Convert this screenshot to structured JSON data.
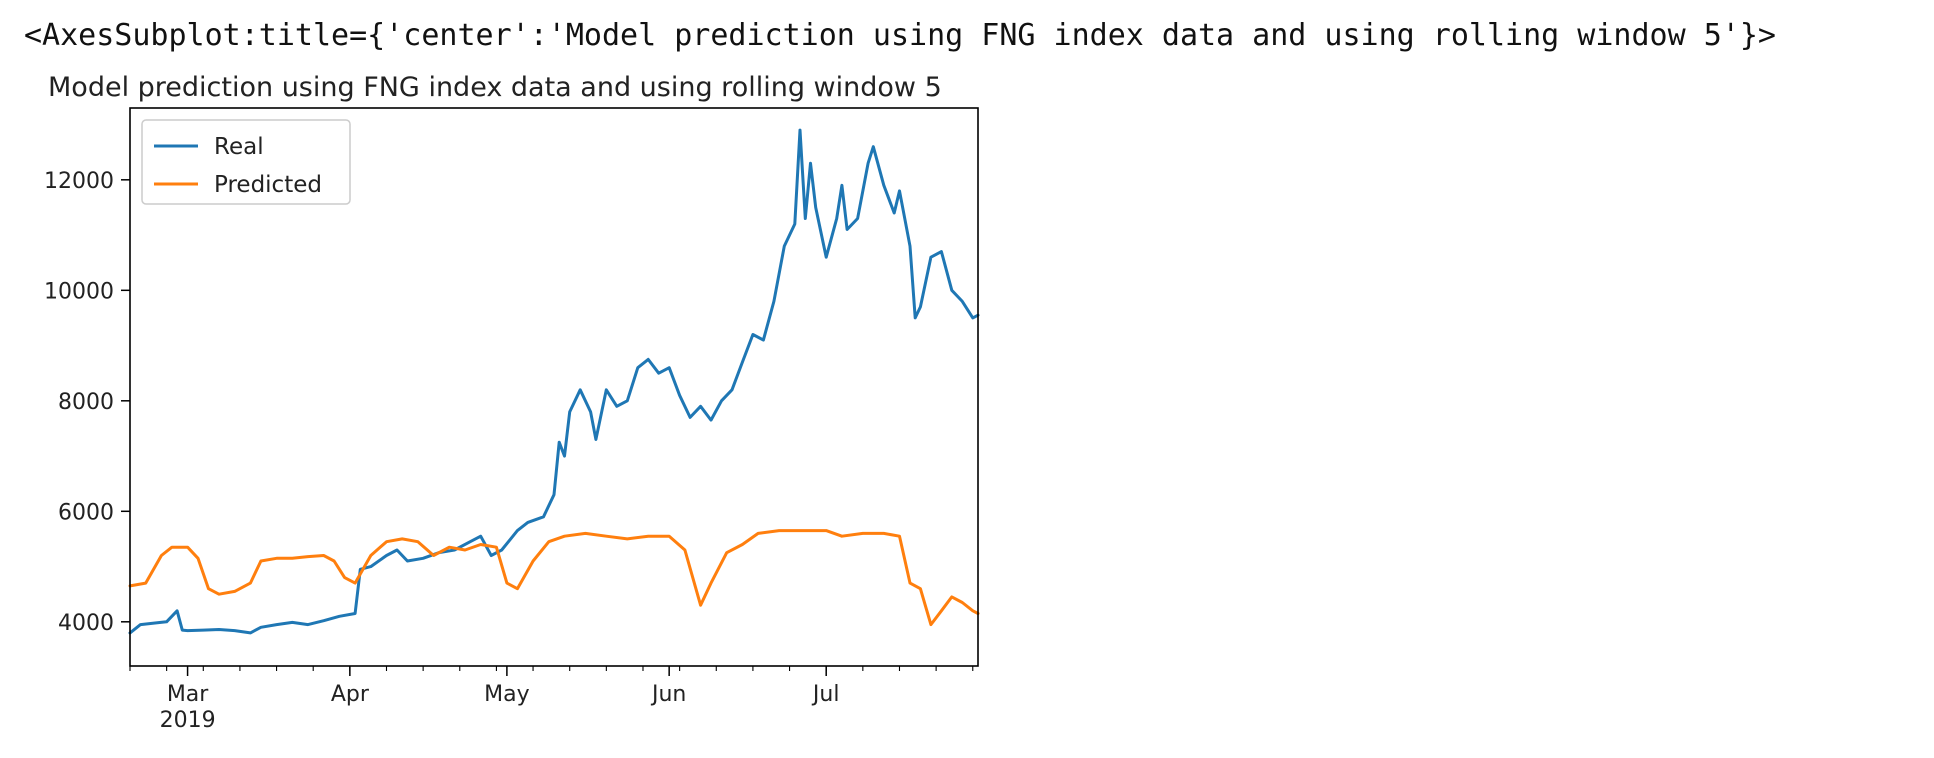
{
  "output_repr": "<AxesSubplot:title={'center':'Model prediction using FNG index data and using rolling window 5'}>",
  "chart_data": {
    "type": "line",
    "title": "Model prediction using FNG index data and using rolling window 5",
    "xlabel": "",
    "ylabel": "",
    "x_start": "2019-02-18",
    "x_end": "2019-07-30",
    "x_ticks": [
      {
        "label": "Mar",
        "sublabel": "2019",
        "date": "2019-03-01"
      },
      {
        "label": "Apr",
        "sublabel": "",
        "date": "2019-04-01"
      },
      {
        "label": "May",
        "sublabel": "",
        "date": "2019-05-01"
      },
      {
        "label": "Jun",
        "sublabel": "",
        "date": "2019-06-01"
      },
      {
        "label": "Jul",
        "sublabel": "",
        "date": "2019-07-01"
      }
    ],
    "y_ticks": [
      4000,
      6000,
      8000,
      10000,
      12000
    ],
    "ylim": [
      3200,
      13300
    ],
    "grid": false,
    "legend": "top-left",
    "series": [
      {
        "name": "Real",
        "color": "#1f77b4",
        "points": [
          [
            "2019-02-18",
            3800
          ],
          [
            "2019-02-20",
            3950
          ],
          [
            "2019-02-23",
            3980
          ],
          [
            "2019-02-25",
            4000
          ],
          [
            "2019-02-27",
            4200
          ],
          [
            "2019-02-28",
            3850
          ],
          [
            "2019-03-01",
            3840
          ],
          [
            "2019-03-04",
            3850
          ],
          [
            "2019-03-07",
            3860
          ],
          [
            "2019-03-10",
            3840
          ],
          [
            "2019-03-13",
            3800
          ],
          [
            "2019-03-15",
            3900
          ],
          [
            "2019-03-18",
            3950
          ],
          [
            "2019-03-21",
            3990
          ],
          [
            "2019-03-24",
            3950
          ],
          [
            "2019-03-27",
            4020
          ],
          [
            "2019-03-30",
            4100
          ],
          [
            "2019-04-02",
            4150
          ],
          [
            "2019-04-03",
            4950
          ],
          [
            "2019-04-05",
            5000
          ],
          [
            "2019-04-08",
            5200
          ],
          [
            "2019-04-10",
            5300
          ],
          [
            "2019-04-12",
            5100
          ],
          [
            "2019-04-15",
            5150
          ],
          [
            "2019-04-18",
            5250
          ],
          [
            "2019-04-21",
            5300
          ],
          [
            "2019-04-24",
            5450
          ],
          [
            "2019-04-26",
            5550
          ],
          [
            "2019-04-28",
            5200
          ],
          [
            "2019-04-30",
            5300
          ],
          [
            "2019-05-03",
            5650
          ],
          [
            "2019-05-05",
            5800
          ],
          [
            "2019-05-08",
            5900
          ],
          [
            "2019-05-10",
            6300
          ],
          [
            "2019-05-11",
            7250
          ],
          [
            "2019-05-12",
            7000
          ],
          [
            "2019-05-13",
            7800
          ],
          [
            "2019-05-15",
            8200
          ],
          [
            "2019-05-17",
            7800
          ],
          [
            "2019-05-18",
            7300
          ],
          [
            "2019-05-20",
            8200
          ],
          [
            "2019-05-22",
            7900
          ],
          [
            "2019-05-24",
            8000
          ],
          [
            "2019-05-26",
            8600
          ],
          [
            "2019-05-28",
            8750
          ],
          [
            "2019-05-30",
            8500
          ],
          [
            "2019-06-01",
            8600
          ],
          [
            "2019-06-03",
            8100
          ],
          [
            "2019-06-05",
            7700
          ],
          [
            "2019-06-07",
            7900
          ],
          [
            "2019-06-09",
            7650
          ],
          [
            "2019-06-11",
            8000
          ],
          [
            "2019-06-13",
            8200
          ],
          [
            "2019-06-15",
            8700
          ],
          [
            "2019-06-17",
            9200
          ],
          [
            "2019-06-19",
            9100
          ],
          [
            "2019-06-21",
            9800
          ],
          [
            "2019-06-23",
            10800
          ],
          [
            "2019-06-25",
            11200
          ],
          [
            "2019-06-26",
            12900
          ],
          [
            "2019-06-27",
            11300
          ],
          [
            "2019-06-28",
            12300
          ],
          [
            "2019-06-29",
            11500
          ],
          [
            "2019-07-01",
            10600
          ],
          [
            "2019-07-03",
            11300
          ],
          [
            "2019-07-04",
            11900
          ],
          [
            "2019-07-05",
            11100
          ],
          [
            "2019-07-07",
            11300
          ],
          [
            "2019-07-09",
            12300
          ],
          [
            "2019-07-10",
            12600
          ],
          [
            "2019-07-12",
            11900
          ],
          [
            "2019-07-14",
            11400
          ],
          [
            "2019-07-15",
            11800
          ],
          [
            "2019-07-17",
            10800
          ],
          [
            "2019-07-18",
            9500
          ],
          [
            "2019-07-19",
            9700
          ],
          [
            "2019-07-21",
            10600
          ],
          [
            "2019-07-23",
            10700
          ],
          [
            "2019-07-25",
            10000
          ],
          [
            "2019-07-27",
            9800
          ],
          [
            "2019-07-29",
            9500
          ],
          [
            "2019-07-30",
            9550
          ]
        ]
      },
      {
        "name": "Predicted",
        "color": "#ff7f0e",
        "points": [
          [
            "2019-02-18",
            4650
          ],
          [
            "2019-02-21",
            4700
          ],
          [
            "2019-02-24",
            5200
          ],
          [
            "2019-02-26",
            5350
          ],
          [
            "2019-03-01",
            5350
          ],
          [
            "2019-03-03",
            5150
          ],
          [
            "2019-03-05",
            4600
          ],
          [
            "2019-03-07",
            4500
          ],
          [
            "2019-03-10",
            4550
          ],
          [
            "2019-03-13",
            4700
          ],
          [
            "2019-03-15",
            5100
          ],
          [
            "2019-03-18",
            5150
          ],
          [
            "2019-03-21",
            5150
          ],
          [
            "2019-03-24",
            5180
          ],
          [
            "2019-03-27",
            5200
          ],
          [
            "2019-03-29",
            5100
          ],
          [
            "2019-03-31",
            4800
          ],
          [
            "2019-04-02",
            4700
          ],
          [
            "2019-04-05",
            5200
          ],
          [
            "2019-04-08",
            5450
          ],
          [
            "2019-04-11",
            5500
          ],
          [
            "2019-04-14",
            5450
          ],
          [
            "2019-04-17",
            5200
          ],
          [
            "2019-04-20",
            5350
          ],
          [
            "2019-04-23",
            5300
          ],
          [
            "2019-04-26",
            5400
          ],
          [
            "2019-04-29",
            5350
          ],
          [
            "2019-05-01",
            4700
          ],
          [
            "2019-05-03",
            4600
          ],
          [
            "2019-05-06",
            5100
          ],
          [
            "2019-05-09",
            5450
          ],
          [
            "2019-05-12",
            5550
          ],
          [
            "2019-05-16",
            5600
          ],
          [
            "2019-05-20",
            5550
          ],
          [
            "2019-05-24",
            5500
          ],
          [
            "2019-05-28",
            5550
          ],
          [
            "2019-06-01",
            5550
          ],
          [
            "2019-06-04",
            5300
          ],
          [
            "2019-06-07",
            4300
          ],
          [
            "2019-06-09",
            4700
          ],
          [
            "2019-06-12",
            5250
          ],
          [
            "2019-06-15",
            5400
          ],
          [
            "2019-06-18",
            5600
          ],
          [
            "2019-06-22",
            5650
          ],
          [
            "2019-06-26",
            5650
          ],
          [
            "2019-07-01",
            5650
          ],
          [
            "2019-07-04",
            5550
          ],
          [
            "2019-07-08",
            5600
          ],
          [
            "2019-07-12",
            5600
          ],
          [
            "2019-07-15",
            5550
          ],
          [
            "2019-07-17",
            4700
          ],
          [
            "2019-07-19",
            4600
          ],
          [
            "2019-07-21",
            3950
          ],
          [
            "2019-07-23",
            4200
          ],
          [
            "2019-07-25",
            4450
          ],
          [
            "2019-07-27",
            4350
          ],
          [
            "2019-07-29",
            4200
          ],
          [
            "2019-07-30",
            4150
          ]
        ]
      }
    ]
  }
}
